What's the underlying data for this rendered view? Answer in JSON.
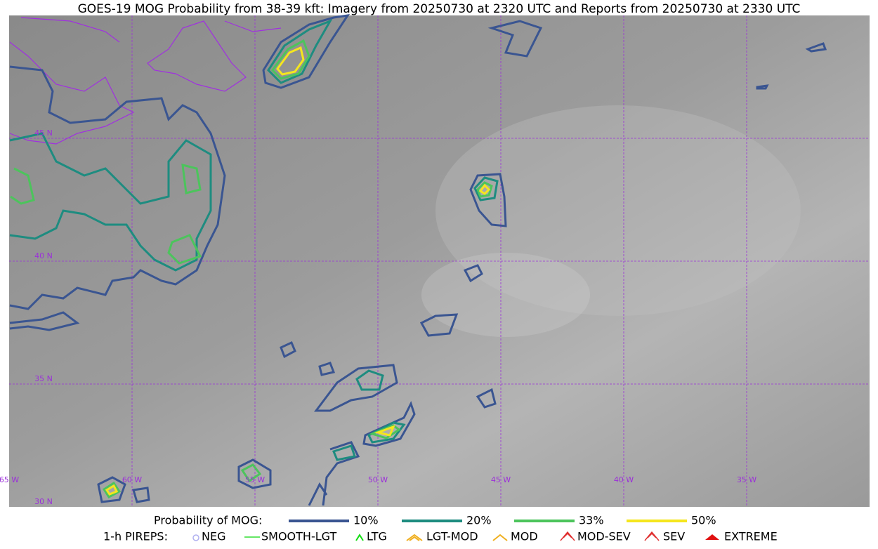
{
  "title": "GOES-19 MOG Probability from 38-39 kft: Imagery from 20250730 at 2320 UTC and Reports from 20250730 at 2330 UTC",
  "map": {
    "lat_labels": [
      "45 N",
      "40 N",
      "35 N",
      "30 N"
    ],
    "lon_labels": [
      "65 W",
      "60 W",
      "55 W",
      "50 W",
      "45 W",
      "40 W",
      "35 W"
    ]
  },
  "legend": {
    "probability": {
      "label": "Probability of MOG:",
      "items": [
        "10%",
        "20%",
        "33%",
        "50%"
      ]
    },
    "pireps": {
      "label": "1-h PIREPS:",
      "items": [
        "NEG",
        "SMOOTH-LGT",
        "LTG",
        "LGT-MOD",
        "MOD",
        "MOD-SEV",
        "SEV",
        "EXTREME"
      ]
    }
  }
}
